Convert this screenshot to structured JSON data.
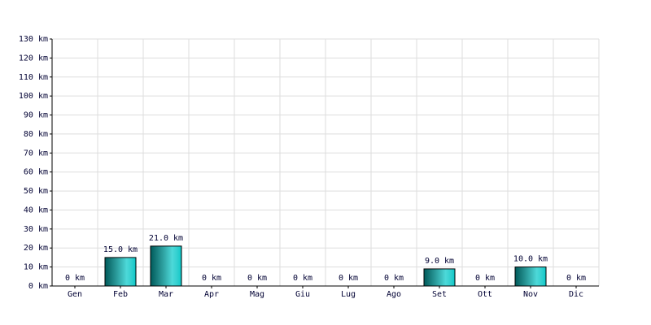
{
  "chart_data": {
    "type": "bar",
    "categories": [
      "Gen",
      "Feb",
      "Mar",
      "Apr",
      "Mag",
      "Giu",
      "Lug",
      "Ago",
      "Set",
      "Ott",
      "Nov",
      "Dic"
    ],
    "values": [
      0,
      15,
      21,
      0,
      0,
      0,
      0,
      0,
      9,
      0,
      10,
      0
    ],
    "value_labels": [
      "0 km",
      "15.0 km",
      "21.0 km",
      "0 km",
      "0 km",
      "0 km",
      "0 km",
      "0 km",
      "9.0 km",
      "0 km",
      "10.0 km",
      "0 km"
    ],
    "color": "#00c8c8",
    "ylim": [
      0,
      130
    ],
    "yticks": [
      {
        "value": 0,
        "label": "0 km"
      },
      {
        "value": 10,
        "label": "10 km"
      },
      {
        "value": 20,
        "label": "20 km"
      },
      {
        "value": 30,
        "label": "30 km"
      },
      {
        "value": 40,
        "label": "40 km"
      },
      {
        "value": 50,
        "label": "50 km"
      },
      {
        "value": 60,
        "label": "60 km"
      },
      {
        "value": 70,
        "label": "70 km"
      },
      {
        "value": 80,
        "label": "80 km"
      },
      {
        "value": 90,
        "label": "90 km"
      },
      {
        "value": 100,
        "label": "100 km"
      },
      {
        "value": 110,
        "label": "110 km"
      },
      {
        "value": 120,
        "label": "120 km"
      },
      {
        "value": 130,
        "label": "130 km"
      }
    ],
    "grid": true
  }
}
